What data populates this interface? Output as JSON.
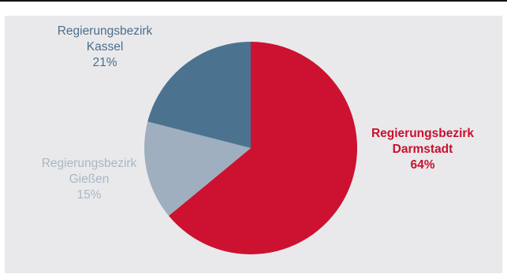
{
  "chart_data": {
    "type": "pie",
    "title": "",
    "start_angle_deg": 0,
    "direction": "clockwise",
    "slices": [
      {
        "label_lines": [
          "Regierungsbezirk",
          "Darmstadt"
        ],
        "value": 64,
        "value_label": "64%",
        "color": "#cc1230",
        "label_color": "#c8102e",
        "label_bold": true
      },
      {
        "label_lines": [
          "Regierungsbezirk",
          "Gießen"
        ],
        "value": 15,
        "value_label": "15%",
        "color": "#9fafbf",
        "label_color": "#a8b7c6",
        "label_bold": false
      },
      {
        "label_lines": [
          "Regierungsbezirk",
          "Kassel"
        ],
        "value": 21,
        "value_label": "21%",
        "color": "#4b7390",
        "label_color": "#4a6f8c",
        "label_bold": false
      }
    ]
  }
}
